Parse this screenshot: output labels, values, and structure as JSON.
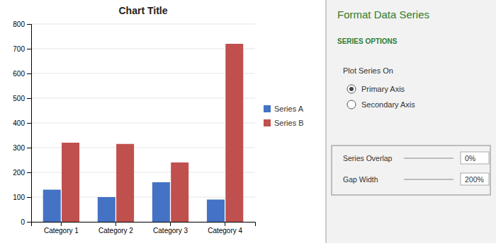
{
  "chart_data": {
    "type": "bar",
    "title": "Chart Title",
    "categories": [
      "Category 1",
      "Category 2",
      "Category 3",
      "Category 4"
    ],
    "series": [
      {
        "name": "Series A",
        "color": "#4472C4",
        "values": [
          130,
          100,
          160,
          90
        ]
      },
      {
        "name": "Series B",
        "color": "#C0504D",
        "values": [
          320,
          315,
          240,
          720
        ]
      }
    ],
    "ylim": [
      0,
      800
    ],
    "yticks": [
      0,
      100,
      200,
      300,
      400,
      500,
      600,
      700,
      800
    ],
    "grid": true,
    "legend": "right",
    "annotations": [
      "Format Data Series",
      "SERIES OPTIONS",
      "Plot Series On",
      "Primary Axis",
      "Secondary Axis",
      "Series Overlap",
      "0%",
      "Gap Width",
      "200%"
    ]
  }
}
